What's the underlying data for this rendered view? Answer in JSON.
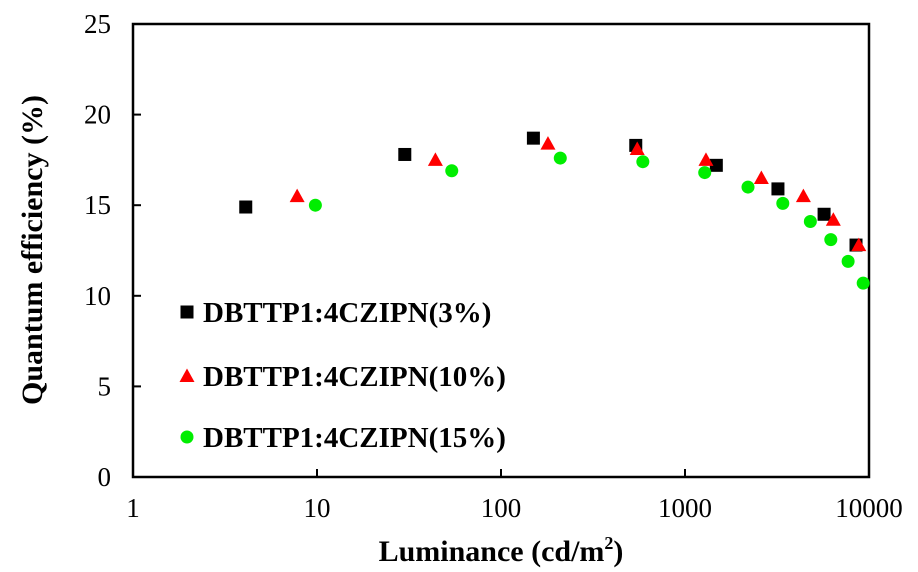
{
  "chart_data": {
    "type": "scatter",
    "xlabel": "Luminance (cd/m",
    "xlabel_sup": "2",
    "xlabel_end": ")",
    "ylabel": "Quantum efficiency (%)",
    "x_scale": "log",
    "xlim": [
      1,
      10000
    ],
    "ylim": [
      0,
      25
    ],
    "x_ticks": [
      1,
      10,
      100,
      1000,
      10000
    ],
    "x_tick_labels": [
      "1",
      "10",
      "100",
      "1000",
      "10000"
    ],
    "y_ticks": [
      0,
      5,
      10,
      15,
      20,
      25
    ],
    "y_tick_labels": [
      "0",
      "5",
      "10",
      "15",
      "20",
      "25"
    ],
    "grid": false,
    "legend_position": "lower-left",
    "series": [
      {
        "name": "DBTTP1:4CZIPN(3%)",
        "marker": "square",
        "color": "#000000",
        "points": [
          [
            4.1,
            14.9
          ],
          [
            30,
            17.8
          ],
          [
            150,
            18.7
          ],
          [
            540,
            18.3
          ],
          [
            1480,
            17.2
          ],
          [
            3200,
            15.9
          ],
          [
            5700,
            14.5
          ],
          [
            8500,
            12.8
          ]
        ]
      },
      {
        "name": "DBTTP1:4CZIPN(10%)",
        "marker": "triangle",
        "color": "#ff0000",
        "points": [
          [
            7.8,
            15.5
          ],
          [
            44,
            17.5
          ],
          [
            180,
            18.4
          ],
          [
            550,
            18.1
          ],
          [
            1300,
            17.5
          ],
          [
            2600,
            16.5
          ],
          [
            4400,
            15.5
          ],
          [
            6400,
            14.2
          ],
          [
            8800,
            12.8
          ]
        ]
      },
      {
        "name": "DBTTP1:4CZIPN(15%)",
        "marker": "circle",
        "color": "#00ee00",
        "points": [
          [
            9.8,
            15.0
          ],
          [
            54,
            16.9
          ],
          [
            210,
            17.6
          ],
          [
            590,
            17.4
          ],
          [
            1280,
            16.8
          ],
          [
            2200,
            16.0
          ],
          [
            3400,
            15.1
          ],
          [
            4800,
            14.1
          ],
          [
            6200,
            13.1
          ],
          [
            7700,
            11.9
          ],
          [
            9300,
            10.7
          ]
        ]
      }
    ]
  }
}
